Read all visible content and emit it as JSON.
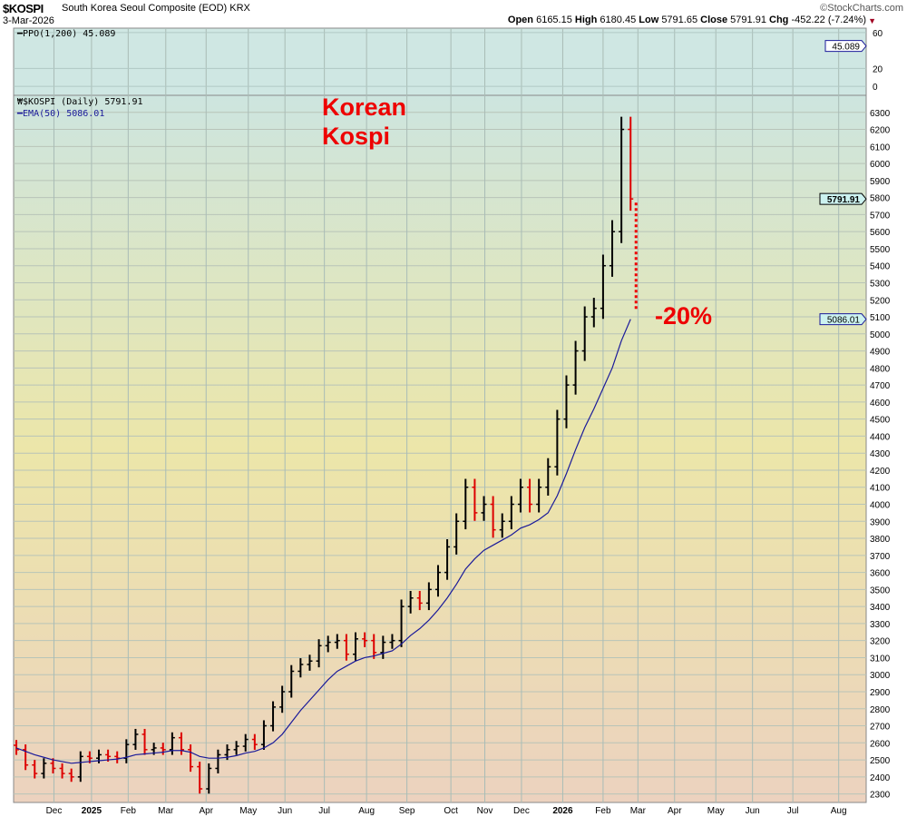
{
  "header": {
    "symbol": "$KOSPI",
    "description": "South Korea Seoul Composite (EOD)  KRX",
    "date": "3-Mar-2026",
    "brand": "©StockCharts.com",
    "open_label": "Open",
    "open": "6165.15",
    "high_label": "High",
    "high": "6180.45",
    "low_label": "Low",
    "low": "5791.65",
    "close_label": "Close",
    "close": "5791.91",
    "chg_label": "Chg",
    "chg": "-452.22 (-7.24%)"
  },
  "ppo_panel": {
    "title": "PPO(1,200) 45.089",
    "value_tag": "45.089",
    "ticks": [
      "60",
      "20",
      "0"
    ],
    "tick_values": [
      60,
      20,
      0
    ],
    "ylim": [
      -10,
      65
    ]
  },
  "annotations": {
    "title_line1": "Korean",
    "title_line2": "Kospi",
    "drop": "-20%"
  },
  "colors": {
    "up": "#000000",
    "down": "#dd0000",
    "ema": "#1a1a9a",
    "annotation": "#ee0000"
  },
  "chart_data": {
    "type": "line",
    "title": "$KOSPI (Daily) 5791.91",
    "legend": [
      "$KOSPI (Daily) 5791.91",
      "EMA(50) 5086.01"
    ],
    "legend_placement": "top-left",
    "price_tag": "5791.91",
    "ema_tag": "5086.01",
    "ylim": [
      2250,
      6400
    ],
    "yticks": [
      2300,
      2400,
      2500,
      2600,
      2700,
      2800,
      2900,
      3000,
      3100,
      3200,
      3300,
      3400,
      3500,
      3600,
      3700,
      3800,
      3900,
      4000,
      4100,
      4200,
      4300,
      4400,
      4500,
      4600,
      4700,
      4800,
      4900,
      5000,
      5100,
      5200,
      5300,
      5400,
      5500,
      5600,
      5700,
      5800,
      5900,
      6000,
      6100,
      6200,
      6300
    ],
    "x_unit": "weeks since 18-Nov-2024",
    "xlim": [
      -0.3,
      92.7
    ],
    "xticks": [
      {
        "label": "Dec",
        "x": 4.1
      },
      {
        "label": "2025",
        "x": 8.2,
        "bold": true
      },
      {
        "label": "Feb",
        "x": 12.2
      },
      {
        "label": "Mar",
        "x": 16.3
      },
      {
        "label": "Apr",
        "x": 20.7
      },
      {
        "label": "May",
        "x": 25.3
      },
      {
        "label": "Jun",
        "x": 29.3
      },
      {
        "label": "Jul",
        "x": 33.6
      },
      {
        "label": "Aug",
        "x": 38.2
      },
      {
        "label": "Sep",
        "x": 42.6
      },
      {
        "label": "Oct",
        "x": 47.4
      },
      {
        "label": "Nov",
        "x": 51.1
      },
      {
        "label": "Dec",
        "x": 55.1
      },
      {
        "label": "2026",
        "x": 59.6,
        "bold": true
      },
      {
        "label": "Feb",
        "x": 64.0
      },
      {
        "label": "Mar",
        "x": 67.8
      },
      {
        "label": "Apr",
        "x": 71.8
      },
      {
        "label": "May",
        "x": 76.3
      },
      {
        "label": "Jun",
        "x": 80.3
      },
      {
        "label": "Jul",
        "x": 84.7
      },
      {
        "label": "Aug",
        "x": 89.7
      }
    ],
    "close": [
      2560,
      2470,
      2420,
      2480,
      2450,
      2420,
      2400,
      2520,
      2510,
      2530,
      2520,
      2510,
      2590,
      2650,
      2560,
      2570,
      2560,
      2630,
      2560,
      2460,
      2330,
      2450,
      2530,
      2560,
      2580,
      2620,
      2590,
      2700,
      2810,
      2900,
      3020,
      3060,
      3080,
      3170,
      3190,
      3200,
      3120,
      3210,
      3200,
      3130,
      3190,
      3200,
      3400,
      3450,
      3420,
      3500,
      3600,
      3750,
      3900,
      4100,
      3950,
      4000,
      3850,
      3900,
      4000,
      4100,
      4000,
      4100,
      4220,
      4500,
      4700,
      4900,
      5100,
      5150,
      5400,
      5600,
      6200,
      5792
    ],
    "ema50": [
      2570,
      2550,
      2530,
      2515,
      2500,
      2490,
      2480,
      2485,
      2490,
      2495,
      2500,
      2505,
      2515,
      2530,
      2535,
      2540,
      2545,
      2555,
      2555,
      2545,
      2520,
      2510,
      2510,
      2515,
      2525,
      2540,
      2550,
      2570,
      2600,
      2650,
      2720,
      2790,
      2850,
      2910,
      2970,
      3020,
      3050,
      3080,
      3100,
      3110,
      3125,
      3140,
      3180,
      3230,
      3270,
      3320,
      3380,
      3450,
      3530,
      3620,
      3680,
      3730,
      3760,
      3790,
      3820,
      3860,
      3880,
      3910,
      3950,
      4050,
      4180,
      4320,
      4450,
      4560,
      4680,
      4800,
      4960,
      5086
    ],
    "drop_from": 6300,
    "drop_to": 5080
  }
}
